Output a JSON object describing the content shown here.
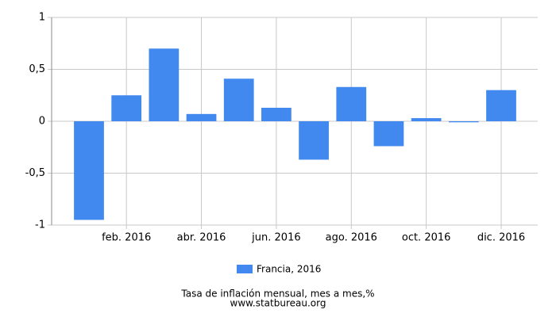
{
  "chart_data": {
    "type": "bar",
    "title": "Tasa de inflación mensual, mes a mes,%",
    "source": "www.statbureau.org",
    "categories": [
      null,
      "feb. 2016",
      null,
      "abr. 2016",
      null,
      "jun. 2016",
      null,
      "ago. 2016",
      null,
      "oct. 2016",
      null,
      "dic. 2016"
    ],
    "series": [
      {
        "name": "Francia, 2016",
        "color": "#4189ee",
        "values": [
          -0.95,
          0.25,
          0.7,
          0.07,
          0.41,
          0.13,
          -0.37,
          0.33,
          -0.24,
          0.03,
          -0.01,
          0.3
        ]
      }
    ],
    "ylim": [
      -1,
      1
    ],
    "yticks": [
      -1,
      {
        "value": -0.5,
        "label": "-0,5"
      },
      0,
      {
        "value": 0.5,
        "label": "0,5"
      },
      1
    ],
    "grid": true
  }
}
